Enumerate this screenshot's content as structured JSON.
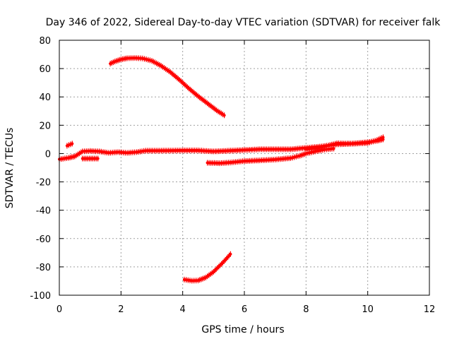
{
  "chart_data": {
    "type": "scatter",
    "title": "Day 346 of 2022, Sidereal Day-to-day VTEC variation (SDTVAR) for receiver falk",
    "xlabel": "GPS time / hours",
    "ylabel": "SDTVAR / TECUs",
    "xlim": [
      0,
      12
    ],
    "ylim": [
      -100,
      80
    ],
    "xticks": [
      0,
      2,
      4,
      6,
      8,
      10,
      12
    ],
    "yticks": [
      -100,
      -80,
      -60,
      -40,
      -20,
      0,
      20,
      40,
      60,
      80
    ],
    "grid": true,
    "color": "#ff0000",
    "series": [
      {
        "name": "arc-high",
        "points": [
          [
            1.65,
            63.5
          ],
          [
            1.8,
            65
          ],
          [
            2.0,
            66.5
          ],
          [
            2.2,
            67.3
          ],
          [
            2.45,
            67.5
          ],
          [
            2.7,
            67.2
          ],
          [
            3.0,
            65.5
          ],
          [
            3.3,
            62
          ],
          [
            3.6,
            57.5
          ],
          [
            3.9,
            52
          ],
          [
            4.2,
            46
          ],
          [
            4.5,
            40.5
          ],
          [
            4.8,
            35.5
          ],
          [
            5.1,
            30.5
          ],
          [
            5.35,
            27
          ]
        ]
      },
      {
        "name": "main-band",
        "points": [
          [
            0.0,
            -4
          ],
          [
            0.3,
            -3
          ],
          [
            0.5,
            -2
          ],
          [
            0.75,
            1.5
          ],
          [
            1.0,
            1.8
          ],
          [
            1.3,
            1.5
          ],
          [
            1.6,
            0.5
          ],
          [
            1.9,
            1
          ],
          [
            2.2,
            0.5
          ],
          [
            2.5,
            1
          ],
          [
            2.8,
            2
          ],
          [
            3.2,
            2
          ],
          [
            3.6,
            2.1
          ],
          [
            4.0,
            2.2
          ],
          [
            4.5,
            2.2
          ],
          [
            5.0,
            1.5
          ],
          [
            5.5,
            2
          ],
          [
            6.0,
            2.5
          ],
          [
            6.5,
            3
          ],
          [
            7.0,
            3
          ],
          [
            7.5,
            3
          ],
          [
            8.0,
            4
          ],
          [
            8.5,
            5
          ],
          [
            9.0,
            6.5
          ],
          [
            9.5,
            7
          ],
          [
            10.0,
            8
          ],
          [
            10.3,
            9
          ],
          [
            10.5,
            10
          ]
        ]
      },
      {
        "name": "left-short",
        "points": [
          [
            0.25,
            5.5
          ],
          [
            0.42,
            7
          ]
        ]
      },
      {
        "name": "left-negative",
        "points": [
          [
            0.75,
            -3.5
          ],
          [
            1.25,
            -3.5
          ]
        ]
      },
      {
        "name": "negative-band",
        "points": [
          [
            4.8,
            -6.5
          ],
          [
            5.2,
            -6.8
          ],
          [
            5.6,
            -6.2
          ],
          [
            6.0,
            -5.3
          ],
          [
            6.5,
            -4.8
          ],
          [
            7.0,
            -4.2
          ],
          [
            7.5,
            -3.2
          ],
          [
            7.8,
            -1.5
          ],
          [
            8.0,
            0
          ],
          [
            8.3,
            1.5
          ],
          [
            8.6,
            2.8
          ],
          [
            8.9,
            3.5
          ]
        ]
      },
      {
        "name": "upper-right",
        "points": [
          [
            8.0,
            3
          ],
          [
            8.5,
            4.5
          ],
          [
            9.0,
            7.2
          ],
          [
            9.5,
            7
          ],
          [
            10.0,
            7.5
          ],
          [
            10.3,
            9.5
          ],
          [
            10.5,
            11.5
          ]
        ]
      },
      {
        "name": "arc-low",
        "points": [
          [
            4.05,
            -89
          ],
          [
            4.3,
            -89.8
          ],
          [
            4.5,
            -89.6
          ],
          [
            4.75,
            -87.5
          ],
          [
            5.0,
            -83.5
          ],
          [
            5.3,
            -77
          ],
          [
            5.55,
            -71
          ]
        ]
      }
    ]
  }
}
